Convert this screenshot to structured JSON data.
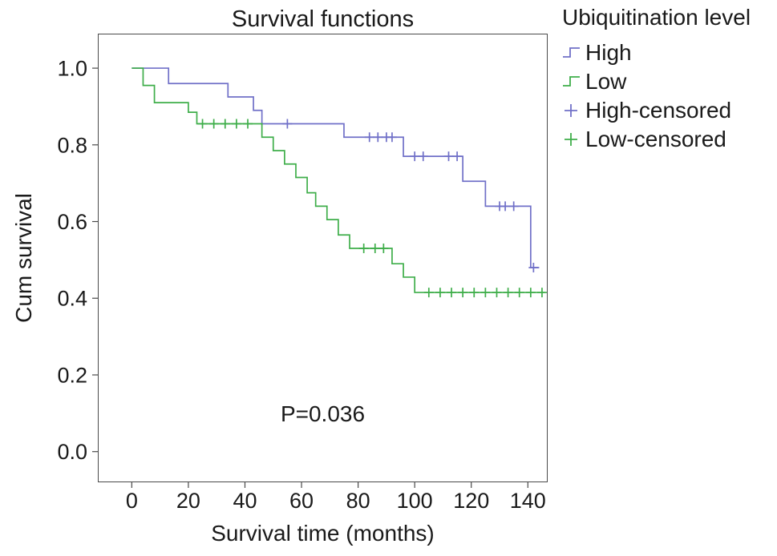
{
  "chart": {
    "title": "Survival functions",
    "xlabel": "Survival time (months)",
    "ylabel": "Cum survival",
    "annotation": "P=0.036"
  },
  "legend": {
    "title": "Ubiquitination level",
    "entries": [
      {
        "label": "High",
        "symbol": "step-line"
      },
      {
        "label": "Low",
        "symbol": "step-line"
      },
      {
        "label": "High-censored",
        "symbol": "plus"
      },
      {
        "label": "Low-censored",
        "symbol": "plus"
      }
    ]
  },
  "chart_data": {
    "type": "line",
    "subtype": "kaplan-meier-step",
    "title": "Survival functions",
    "xlabel": "Survival time (months)",
    "ylabel": "Cum survival",
    "annotation": "P=0.036",
    "legend_position": "right",
    "grid": false,
    "x_ticks": [
      0,
      20,
      40,
      60,
      80,
      100,
      120,
      140
    ],
    "y_ticks": [
      0.0,
      0.2,
      0.4,
      0.6,
      0.8,
      1.0
    ],
    "xlim": [
      -12,
      147
    ],
    "ylim": [
      -0.08,
      1.09
    ],
    "colors": {
      "high": "#7070c8",
      "low": "#3fae4a",
      "axis": "#4a4a4a"
    },
    "series": [
      {
        "name": "High",
        "color": "#7070c8",
        "end": 144,
        "steps": [
          [
            0,
            1.0
          ],
          [
            13,
            0.96
          ],
          [
            34,
            0.925
          ],
          [
            43,
            0.89
          ],
          [
            46,
            0.855
          ],
          [
            75,
            0.82
          ],
          [
            96,
            0.77
          ],
          [
            117,
            0.705
          ],
          [
            125,
            0.64
          ],
          [
            141,
            0.48
          ]
        ],
        "censored": [
          [
            55,
            0.855
          ],
          [
            84,
            0.82
          ],
          [
            87,
            0.82
          ],
          [
            90,
            0.82
          ],
          [
            92,
            0.82
          ],
          [
            100,
            0.77
          ],
          [
            103,
            0.77
          ],
          [
            112,
            0.77
          ],
          [
            115,
            0.77
          ],
          [
            130,
            0.64
          ],
          [
            132,
            0.64
          ],
          [
            135,
            0.64
          ],
          [
            142,
            0.48
          ]
        ]
      },
      {
        "name": "Low",
        "color": "#3fae4a",
        "end": 146,
        "steps": [
          [
            0,
            1.0
          ],
          [
            4,
            0.955
          ],
          [
            8,
            0.91
          ],
          [
            20,
            0.885
          ],
          [
            23,
            0.855
          ],
          [
            46,
            0.82
          ],
          [
            50,
            0.785
          ],
          [
            54,
            0.75
          ],
          [
            58,
            0.715
          ],
          [
            62,
            0.675
          ],
          [
            65,
            0.64
          ],
          [
            69,
            0.605
          ],
          [
            73,
            0.565
          ],
          [
            77,
            0.53
          ],
          [
            92,
            0.49
          ],
          [
            96,
            0.455
          ],
          [
            100,
            0.415
          ]
        ],
        "censored": [
          [
            25,
            0.855
          ],
          [
            29,
            0.855
          ],
          [
            33,
            0.855
          ],
          [
            37,
            0.855
          ],
          [
            41,
            0.855
          ],
          [
            82,
            0.53
          ],
          [
            86,
            0.53
          ],
          [
            89,
            0.53
          ],
          [
            105,
            0.415
          ],
          [
            109,
            0.415
          ],
          [
            113,
            0.415
          ],
          [
            117,
            0.415
          ],
          [
            121,
            0.415
          ],
          [
            125,
            0.415
          ],
          [
            129,
            0.415
          ],
          [
            133,
            0.415
          ],
          [
            137,
            0.415
          ],
          [
            141,
            0.415
          ],
          [
            145,
            0.415
          ]
        ]
      }
    ]
  }
}
